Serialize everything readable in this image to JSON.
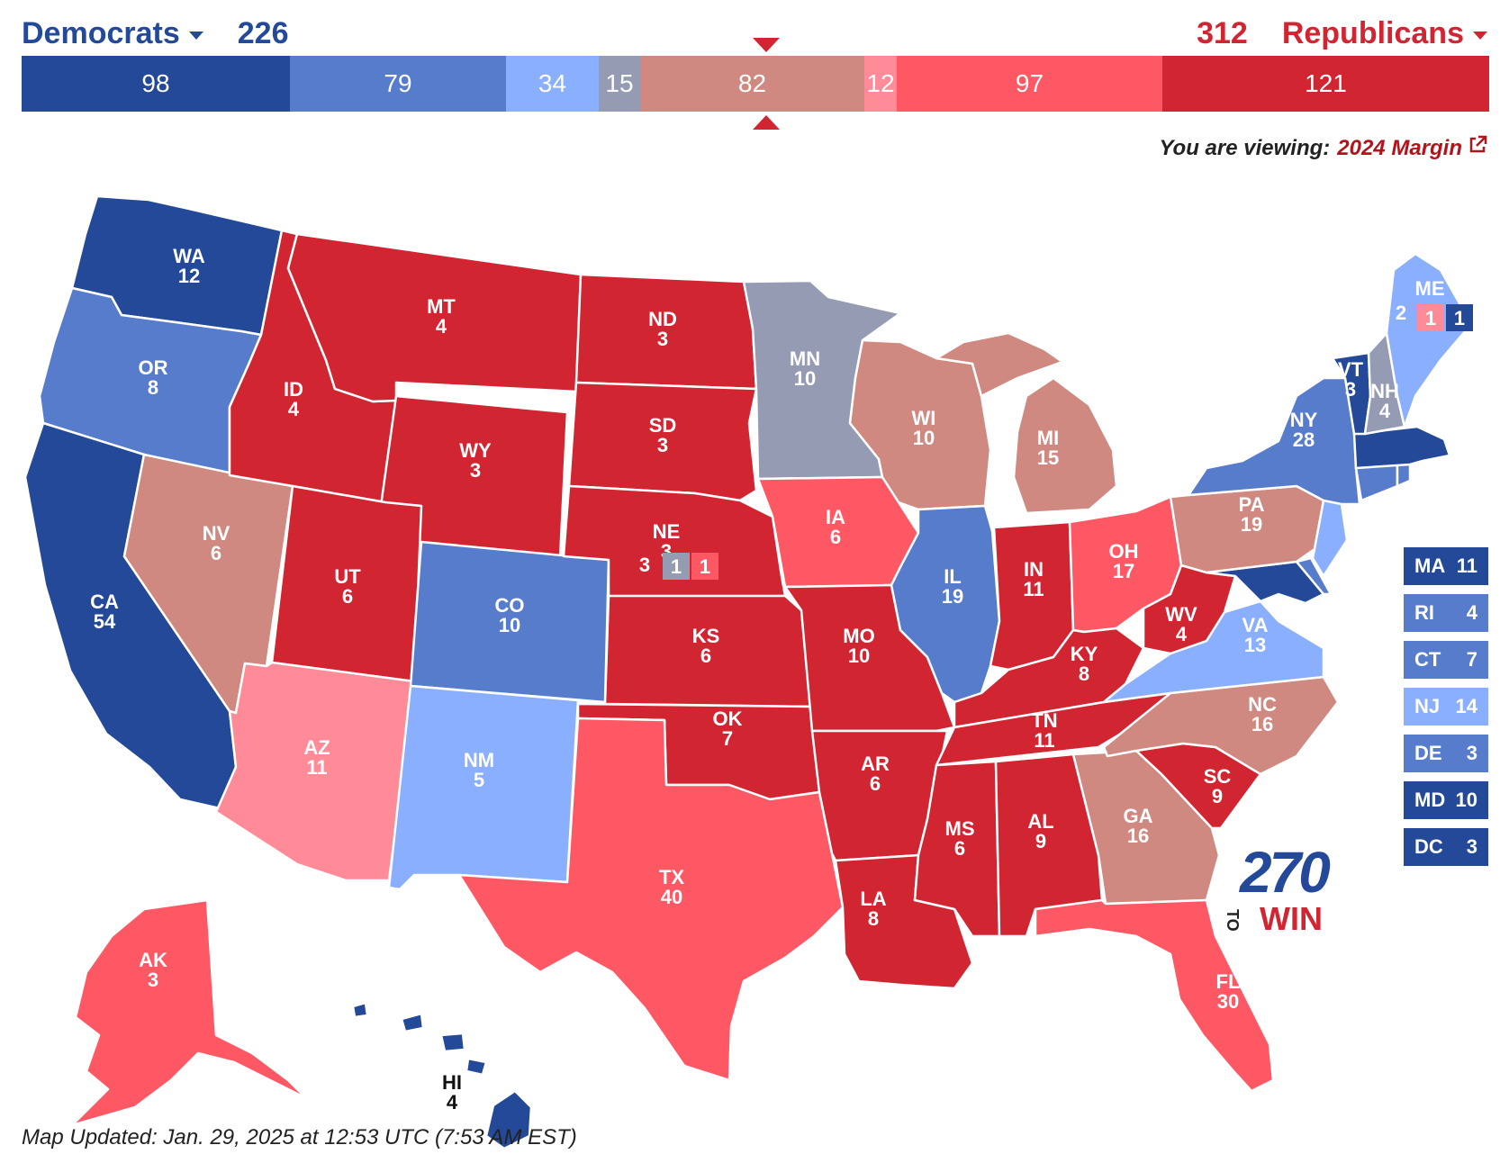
{
  "header": {
    "dem_label": "Democrats",
    "dem_total": "226",
    "rep_total": "312",
    "rep_label": "Republicans"
  },
  "bar_segments": [
    {
      "value": "98",
      "color": "#244999"
    },
    {
      "value": "79",
      "color": "#577ccc"
    },
    {
      "value": "34",
      "color": "#8aafff"
    },
    {
      "value": "15",
      "color": "#949bb3"
    },
    {
      "value": "82",
      "color": "#cf8980"
    },
    {
      "value": "12",
      "color": "#ff8b98"
    },
    {
      "value": "97",
      "color": "#ff5865"
    },
    {
      "value": "121",
      "color": "#d22532"
    }
  ],
  "viewing": {
    "prefix": "You are viewing:",
    "link": "2024 Margin"
  },
  "colors": {
    "solid_d": "#244999",
    "likely_d": "#577ccc",
    "lean_d": "#8aafff",
    "tilt": "#949bb3",
    "tilt_r": "#cf8980",
    "lean_r": "#ff8b98",
    "likely_r": "#ff5865",
    "solid_r": "#d22532"
  },
  "states": [
    {
      "abbr": "WA",
      "ev": "12"
    },
    {
      "abbr": "OR",
      "ev": "8"
    },
    {
      "abbr": "CA",
      "ev": "54"
    },
    {
      "abbr": "NV",
      "ev": "6"
    },
    {
      "abbr": "ID",
      "ev": "4"
    },
    {
      "abbr": "MT",
      "ev": "4"
    },
    {
      "abbr": "WY",
      "ev": "3"
    },
    {
      "abbr": "UT",
      "ev": "6"
    },
    {
      "abbr": "AZ",
      "ev": "11"
    },
    {
      "abbr": "CO",
      "ev": "10"
    },
    {
      "abbr": "NM",
      "ev": "5"
    },
    {
      "abbr": "ND",
      "ev": "3"
    },
    {
      "abbr": "SD",
      "ev": "3"
    },
    {
      "abbr": "NE",
      "ev": "3"
    },
    {
      "abbr": "KS",
      "ev": "6"
    },
    {
      "abbr": "OK",
      "ev": "7"
    },
    {
      "abbr": "TX",
      "ev": "40"
    },
    {
      "abbr": "MN",
      "ev": "10"
    },
    {
      "abbr": "IA",
      "ev": "6"
    },
    {
      "abbr": "MO",
      "ev": "10"
    },
    {
      "abbr": "AR",
      "ev": "6"
    },
    {
      "abbr": "LA",
      "ev": "8"
    },
    {
      "abbr": "WI",
      "ev": "10"
    },
    {
      "abbr": "IL",
      "ev": "19"
    },
    {
      "abbr": "MI",
      "ev": "15"
    },
    {
      "abbr": "IN",
      "ev": "11"
    },
    {
      "abbr": "OH",
      "ev": "17"
    },
    {
      "abbr": "KY",
      "ev": "8"
    },
    {
      "abbr": "TN",
      "ev": "11"
    },
    {
      "abbr": "MS",
      "ev": "6"
    },
    {
      "abbr": "AL",
      "ev": "9"
    },
    {
      "abbr": "GA",
      "ev": "16"
    },
    {
      "abbr": "FL",
      "ev": "30"
    },
    {
      "abbr": "SC",
      "ev": "9"
    },
    {
      "abbr": "NC",
      "ev": "16"
    },
    {
      "abbr": "VA",
      "ev": "13"
    },
    {
      "abbr": "WV",
      "ev": "4"
    },
    {
      "abbr": "PA",
      "ev": "19"
    },
    {
      "abbr": "NY",
      "ev": "28"
    },
    {
      "abbr": "VT",
      "ev": "3"
    },
    {
      "abbr": "NH",
      "ev": "4"
    },
    {
      "abbr": "ME",
      "ev": ""
    },
    {
      "abbr": "AK",
      "ev": "3"
    },
    {
      "abbr": "HI",
      "ev": "4"
    }
  ],
  "ne_districts": [
    "3",
    "1",
    "1"
  ],
  "me_districts": [
    "2",
    "1",
    "1"
  ],
  "small_states": [
    {
      "abbr": "MA",
      "ev": "11"
    },
    {
      "abbr": "RI",
      "ev": "4"
    },
    {
      "abbr": "CT",
      "ev": "7"
    },
    {
      "abbr": "NJ",
      "ev": "14"
    },
    {
      "abbr": "DE",
      "ev": "3"
    },
    {
      "abbr": "MD",
      "ev": "10"
    },
    {
      "abbr": "DC",
      "ev": "3"
    }
  ],
  "logo": {
    "number": "270",
    "to": "TO",
    "win": "WIN"
  },
  "updated": "Map Updated: Jan. 29, 2025 at 12:53 UTC (7:53 AM EST)"
}
